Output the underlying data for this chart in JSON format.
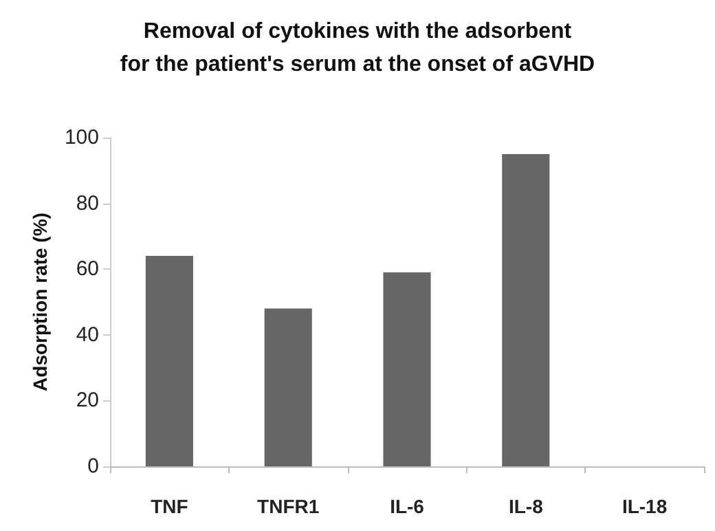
{
  "chart_data": {
    "type": "bar",
    "title": "Removal of cytokines with the adsorbent\nfor the patient's serum at the onset of aGVHD",
    "ylabel": "Adsorption rate (%)",
    "categories": [
      "TNF",
      "TNFR1",
      "IL-6",
      "IL-8",
      "IL-18"
    ],
    "values": [
      64,
      48,
      59,
      95,
      0
    ],
    "color": "#666666",
    "ylim": [
      0,
      100
    ],
    "yticks": [
      0,
      20,
      40,
      60,
      80,
      100
    ]
  }
}
